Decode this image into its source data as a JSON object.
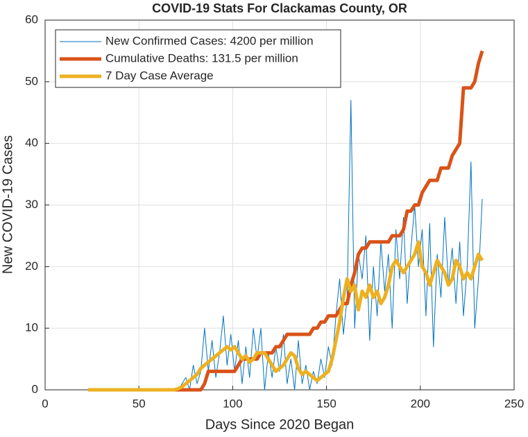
{
  "chart_data": {
    "type": "line",
    "title": "COVID-19 Stats For Clackamas County, OR",
    "x_label": "Days Since 2020 Began",
    "y_label": "New COVID-19 Cases",
    "xlim": [
      0,
      250
    ],
    "xticks": [
      0,
      50,
      100,
      150,
      200,
      250
    ],
    "ylim": [
      0,
      60
    ],
    "yticks": [
      0,
      10,
      20,
      30,
      40,
      50,
      60
    ],
    "grid": true,
    "legend": "top-left",
    "x": [
      23,
      25,
      27,
      29,
      31,
      33,
      35,
      37,
      39,
      41,
      43,
      45,
      47,
      49,
      51,
      53,
      55,
      57,
      59,
      61,
      63,
      65,
      67,
      69,
      71,
      73,
      75,
      77,
      79,
      81,
      83,
      85,
      87,
      89,
      91,
      93,
      95,
      97,
      99,
      101,
      103,
      105,
      107,
      109,
      111,
      113,
      115,
      117,
      119,
      121,
      123,
      125,
      127,
      129,
      131,
      133,
      135,
      137,
      139,
      141,
      143,
      145,
      147,
      149,
      151,
      153,
      155,
      157,
      159,
      161,
      163,
      165,
      167,
      169,
      171,
      173,
      175,
      177,
      179,
      181,
      183,
      185,
      187,
      189,
      191,
      193,
      195,
      197,
      199,
      201,
      203,
      205,
      207,
      209,
      211,
      213,
      215,
      217,
      219,
      221,
      223,
      225,
      227,
      229,
      231,
      233
    ],
    "series": [
      {
        "name": "New Confirmed Cases: 4200 per million",
        "color": "#0072BD",
        "width": 1,
        "values": [
          0,
          0,
          0,
          0,
          0,
          0,
          0,
          0,
          0,
          0,
          0,
          0,
          0,
          0,
          0,
          0,
          0,
          0,
          0,
          0,
          0,
          0,
          0,
          0,
          0,
          1,
          2,
          0,
          4,
          1,
          3,
          10,
          3,
          8,
          2,
          6,
          12,
          4,
          9,
          3,
          8,
          1,
          7,
          2,
          10,
          5,
          10,
          0,
          6,
          2,
          7,
          3,
          9,
          1,
          5,
          0,
          8,
          1,
          4,
          0,
          3,
          1,
          5,
          2,
          7,
          4,
          12,
          18,
          9,
          15,
          47,
          10,
          22,
          18,
          25,
          8,
          20,
          12,
          24,
          16,
          22,
          10,
          26,
          18,
          28,
          14,
          23,
          30,
          20,
          26,
          12,
          27,
          7,
          22,
          15,
          28,
          17,
          23,
          14,
          24,
          12,
          20,
          37,
          10,
          18,
          31
        ]
      },
      {
        "name": "Cumulative Deaths: 131.5 per million",
        "color": "#D95319",
        "width": 5,
        "values": [
          0,
          0,
          0,
          0,
          0,
          0,
          0,
          0,
          0,
          0,
          0,
          0,
          0,
          0,
          0,
          0,
          0,
          0,
          0,
          0,
          0,
          0,
          0,
          0,
          0,
          0,
          0,
          0,
          0,
          0,
          0,
          1,
          3,
          3,
          3,
          3,
          3,
          3,
          3,
          3,
          4,
          5,
          5,
          5,
          5,
          5,
          6,
          6,
          6,
          6,
          7,
          7,
          8,
          9,
          9,
          9,
          9,
          9,
          9,
          9,
          10,
          10,
          11,
          11,
          12,
          12,
          12,
          13,
          14,
          14,
          17,
          19,
          22,
          23,
          23,
          24,
          24,
          24,
          24,
          24,
          24,
          25,
          25,
          25,
          26,
          29,
          29,
          30,
          30,
          32,
          33,
          34,
          34,
          34,
          36,
          36,
          36,
          38,
          39,
          40,
          49,
          49,
          49,
          50,
          53,
          55
        ]
      },
      {
        "name": "7 Day Case Average",
        "color": "#EDB120",
        "width": 5,
        "values": [
          0,
          0,
          0,
          0,
          0,
          0,
          0,
          0,
          0,
          0,
          0,
          0,
          0,
          0,
          0,
          0,
          0,
          0,
          0,
          0,
          0,
          0,
          0,
          0,
          0.2,
          0.5,
          1,
          1.5,
          2,
          2.5,
          3.5,
          4,
          4.5,
          5,
          5.5,
          6,
          6.5,
          7,
          6.5,
          7,
          6,
          5,
          5.5,
          4.5,
          5,
          6,
          6,
          6,
          5,
          4,
          3,
          3.5,
          4,
          5,
          6,
          5.5,
          3.5,
          2.5,
          3,
          2.5,
          2,
          1.5,
          2,
          2.5,
          3,
          5,
          8,
          11,
          15,
          18,
          16,
          17,
          13,
          16,
          15,
          17,
          15,
          16,
          14,
          15,
          17,
          20,
          21,
          20,
          19,
          20,
          21,
          22,
          24,
          20,
          19,
          17,
          19,
          21,
          20,
          19,
          17,
          18,
          21,
          20,
          18,
          19,
          18,
          20,
          22,
          21
        ]
      }
    ]
  }
}
